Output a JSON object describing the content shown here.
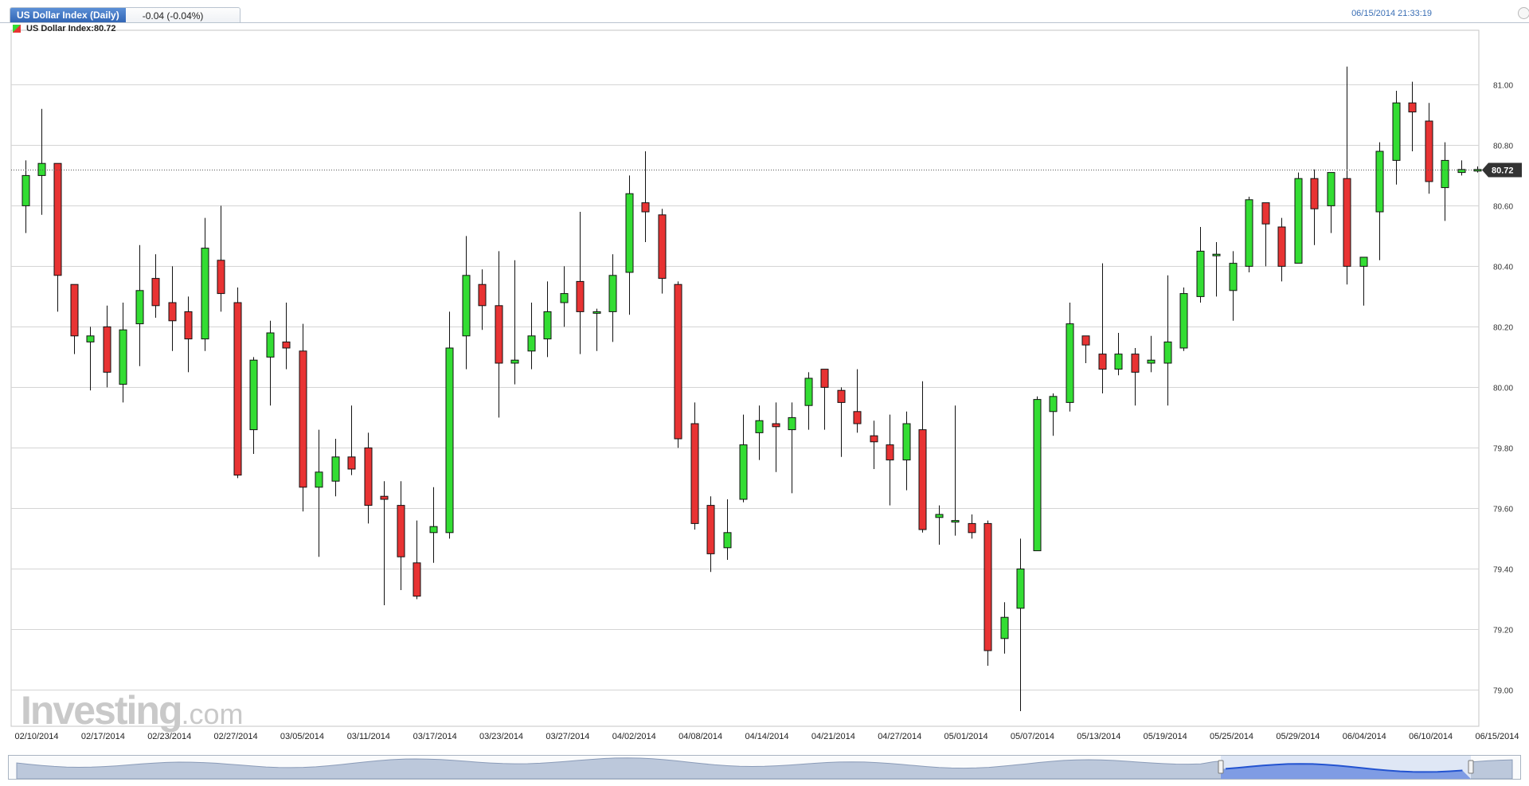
{
  "header": {
    "title": "US Dollar Index (Daily)",
    "change": "-0.04 (-0.04%)",
    "timestamp": "06/15/2014 21:33:19",
    "legend": "US Dollar Index:80.72"
  },
  "branding": {
    "logo_main": "Investing",
    "logo_suffix": ".com"
  },
  "colors": {
    "up": "#33dd33",
    "down": "#e83333",
    "grid": "#d4d4d4",
    "last_label_bg": "#333333",
    "navigator_fill": "#bcc8db",
    "navigator_selected": "#1e4fcf"
  },
  "chart_data": {
    "type": "candlestick",
    "title": "US Dollar Index (Daily)",
    "ylim": [
      78.88,
      81.18
    ],
    "y_ticks": [
      "79.00",
      "79.20",
      "79.40",
      "79.60",
      "79.80",
      "80.00",
      "80.20",
      "80.40",
      "80.60",
      "80.80",
      "81.00"
    ],
    "x_ticks": [
      "02/10/2014",
      "02/17/2014",
      "02/23/2014",
      "02/27/2014",
      "03/05/2014",
      "03/11/2014",
      "03/17/2014",
      "03/23/2014",
      "03/27/2014",
      "04/02/2014",
      "04/08/2014",
      "04/14/2014",
      "04/21/2014",
      "04/27/2014",
      "05/01/2014",
      "05/07/2014",
      "05/13/2014",
      "05/19/2014",
      "05/25/2014",
      "05/29/2014",
      "06/04/2014",
      "06/10/2014",
      "06/15/2014"
    ],
    "last_value": "80.72",
    "ohlc": [
      [
        80.6,
        80.75,
        80.51,
        80.7
      ],
      [
        80.7,
        80.92,
        80.57,
        80.74
      ],
      [
        80.74,
        80.74,
        80.25,
        80.37
      ],
      [
        80.34,
        80.34,
        80.11,
        80.17
      ],
      [
        80.15,
        80.2,
        79.99,
        80.17
      ],
      [
        80.2,
        80.27,
        80.0,
        80.05
      ],
      [
        80.01,
        80.28,
        79.95,
        80.19
      ],
      [
        80.21,
        80.47,
        80.07,
        80.32
      ],
      [
        80.36,
        80.44,
        80.23,
        80.27
      ],
      [
        80.28,
        80.4,
        80.12,
        80.22
      ],
      [
        80.25,
        80.3,
        80.05,
        80.16
      ],
      [
        80.16,
        80.56,
        80.12,
        80.46
      ],
      [
        80.42,
        80.6,
        80.25,
        80.31
      ],
      [
        80.28,
        80.33,
        79.7,
        79.71
      ],
      [
        79.86,
        80.1,
        79.78,
        80.09
      ],
      [
        80.1,
        80.22,
        79.94,
        80.18
      ],
      [
        80.15,
        80.28,
        80.06,
        80.13
      ],
      [
        80.12,
        80.21,
        79.59,
        79.67
      ],
      [
        79.67,
        79.86,
        79.44,
        79.72
      ],
      [
        79.69,
        79.83,
        79.64,
        79.77
      ],
      [
        79.77,
        79.94,
        79.71,
        79.73
      ],
      [
        79.8,
        79.85,
        79.55,
        79.61
      ],
      [
        79.64,
        79.69,
        79.28,
        79.63
      ],
      [
        79.61,
        79.69,
        79.33,
        79.44
      ],
      [
        79.42,
        79.56,
        79.3,
        79.31
      ],
      [
        79.52,
        79.67,
        79.42,
        79.54
      ],
      [
        79.52,
        80.25,
        79.5,
        80.13
      ],
      [
        80.17,
        80.5,
        80.06,
        80.37
      ],
      [
        80.34,
        80.39,
        80.19,
        80.27
      ],
      [
        80.27,
        80.45,
        79.9,
        80.08
      ],
      [
        80.08,
        80.42,
        80.01,
        80.09
      ],
      [
        80.12,
        80.28,
        80.06,
        80.17
      ],
      [
        80.16,
        80.35,
        80.1,
        80.25
      ],
      [
        80.28,
        80.4,
        80.2,
        80.31
      ],
      [
        80.35,
        80.58,
        80.11,
        80.25
      ],
      [
        80.25,
        80.26,
        80.12,
        80.25
      ],
      [
        80.25,
        80.44,
        80.15,
        80.37
      ],
      [
        80.38,
        80.7,
        80.24,
        80.64
      ],
      [
        80.61,
        80.78,
        80.48,
        80.58
      ],
      [
        80.57,
        80.59,
        80.31,
        80.36
      ],
      [
        80.34,
        80.35,
        79.8,
        79.83
      ],
      [
        79.88,
        79.95,
        79.53,
        79.55
      ],
      [
        79.61,
        79.64,
        79.39,
        79.45
      ],
      [
        79.47,
        79.63,
        79.43,
        79.52
      ],
      [
        79.63,
        79.91,
        79.62,
        79.81
      ],
      [
        79.85,
        79.94,
        79.76,
        79.89
      ],
      [
        79.88,
        79.95,
        79.72,
        79.87
      ],
      [
        79.86,
        79.95,
        79.65,
        79.9
      ],
      [
        79.94,
        80.05,
        79.86,
        80.03
      ],
      [
        80.06,
        80.06,
        79.86,
        80.0
      ],
      [
        79.99,
        80.0,
        79.77,
        79.95
      ],
      [
        79.92,
        80.06,
        79.85,
        79.88
      ],
      [
        79.84,
        79.89,
        79.73,
        79.82
      ],
      [
        79.81,
        79.91,
        79.61,
        79.76
      ],
      [
        79.76,
        79.92,
        79.66,
        79.88
      ],
      [
        79.86,
        80.02,
        79.52,
        79.53
      ],
      [
        79.57,
        79.61,
        79.48,
        79.58
      ],
      [
        79.56,
        79.94,
        79.51,
        79.56
      ],
      [
        79.55,
        79.58,
        79.5,
        79.52
      ],
      [
        79.55,
        79.56,
        79.08,
        79.13
      ],
      [
        79.17,
        79.29,
        79.12,
        79.24
      ],
      [
        79.27,
        79.5,
        78.93,
        79.4
      ],
      [
        79.46,
        79.97,
        79.46,
        79.96
      ],
      [
        79.92,
        79.98,
        79.84,
        79.97
      ],
      [
        79.95,
        80.28,
        79.92,
        80.21
      ],
      [
        80.17,
        80.17,
        80.08,
        80.14
      ],
      [
        80.11,
        80.41,
        79.98,
        80.06
      ],
      [
        80.06,
        80.18,
        80.04,
        80.11
      ],
      [
        80.11,
        80.13,
        79.94,
        80.05
      ],
      [
        80.08,
        80.17,
        80.05,
        80.09
      ],
      [
        80.08,
        80.37,
        79.94,
        80.15
      ],
      [
        80.13,
        80.33,
        80.12,
        80.31
      ],
      [
        80.3,
        80.53,
        80.28,
        80.45
      ],
      [
        80.44,
        80.48,
        80.3,
        80.44
      ],
      [
        80.32,
        80.45,
        80.22,
        80.41
      ],
      [
        80.4,
        80.63,
        80.38,
        80.62
      ],
      [
        80.61,
        80.61,
        80.4,
        80.54
      ],
      [
        80.53,
        80.56,
        80.35,
        80.4
      ],
      [
        80.41,
        80.71,
        80.41,
        80.69
      ],
      [
        80.69,
        80.72,
        80.47,
        80.59
      ],
      [
        80.6,
        80.71,
        80.51,
        80.71
      ],
      [
        80.69,
        81.06,
        80.34,
        80.4
      ],
      [
        80.4,
        80.43,
        80.27,
        80.43
      ],
      [
        80.58,
        80.81,
        80.42,
        80.78
      ],
      [
        80.75,
        80.98,
        80.67,
        80.94
      ],
      [
        80.94,
        81.01,
        80.78,
        80.91
      ],
      [
        80.88,
        80.94,
        80.64,
        80.68
      ],
      [
        80.66,
        80.81,
        80.55,
        80.75
      ],
      [
        80.71,
        80.75,
        80.7,
        80.72
      ],
      [
        80.72,
        80.73,
        80.71,
        80.72
      ]
    ]
  }
}
